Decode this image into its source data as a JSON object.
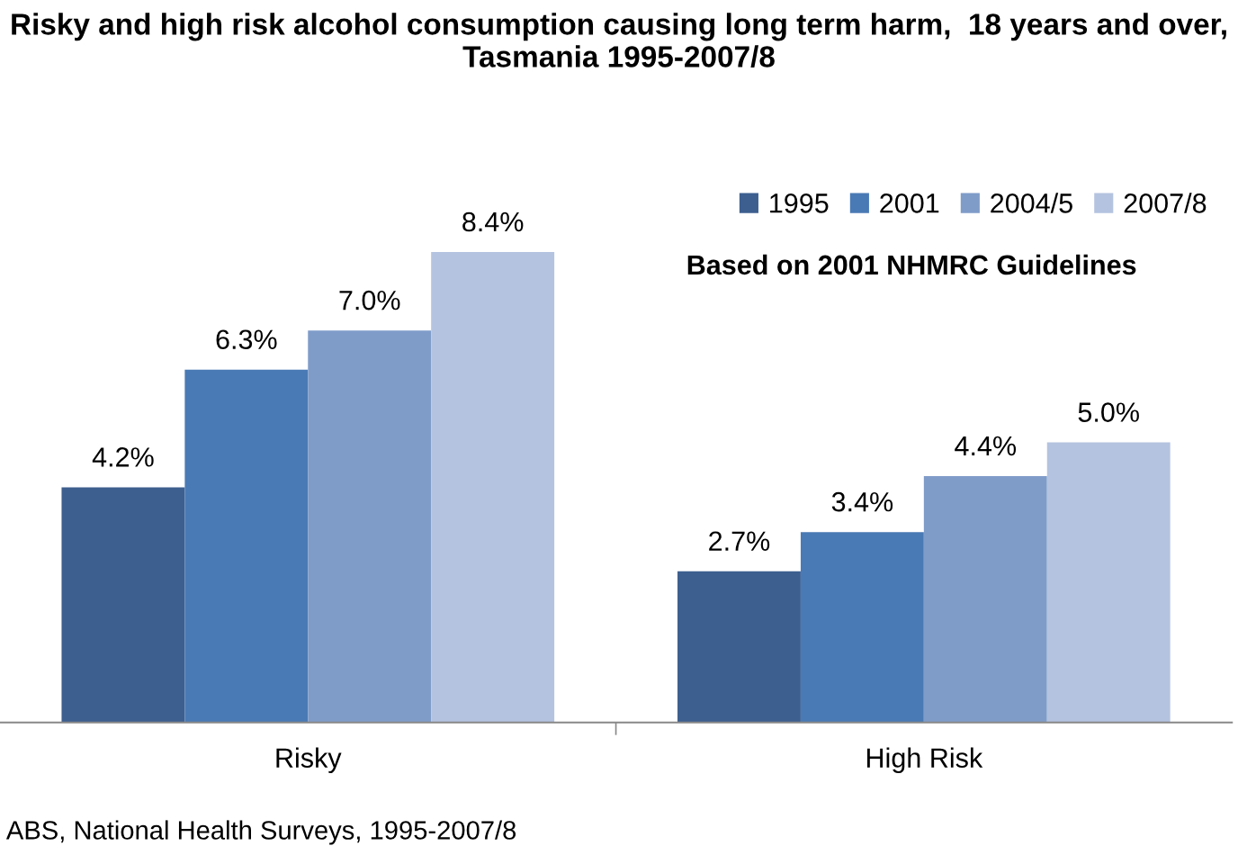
{
  "chart_data": {
    "type": "bar",
    "title": "Risky and high risk alcohol consumption causing long term harm,  18 years and over, Tasmania 1995-2007/8",
    "categories": [
      "Risky",
      "High Risk"
    ],
    "series": [
      {
        "name": "1995",
        "color": "#3d5f8f",
        "values": [
          4.2,
          2.7
        ],
        "value_labels": [
          "4.2%",
          "2.7%"
        ]
      },
      {
        "name": "2001",
        "color": "#4a7ab5",
        "values": [
          6.3,
          3.4
        ],
        "value_labels": [
          "6.3%",
          "3.4%"
        ]
      },
      {
        "name": "2004/5",
        "color": "#7f9cc9",
        "values": [
          7.0,
          4.4
        ],
        "value_labels": [
          "7.0%",
          "4.4%"
        ]
      },
      {
        "name": "2007/8",
        "color": "#b4c3df",
        "values": [
          8.4,
          5.0
        ],
        "value_labels": [
          "8.4%",
          "5.0%"
        ]
      }
    ],
    "annotations": [
      "Based on 2001 NHMRC Guidelines",
      "ABS, National Health Surveys, 1995-2007/8"
    ],
    "legend": "top right",
    "grid": false
  }
}
